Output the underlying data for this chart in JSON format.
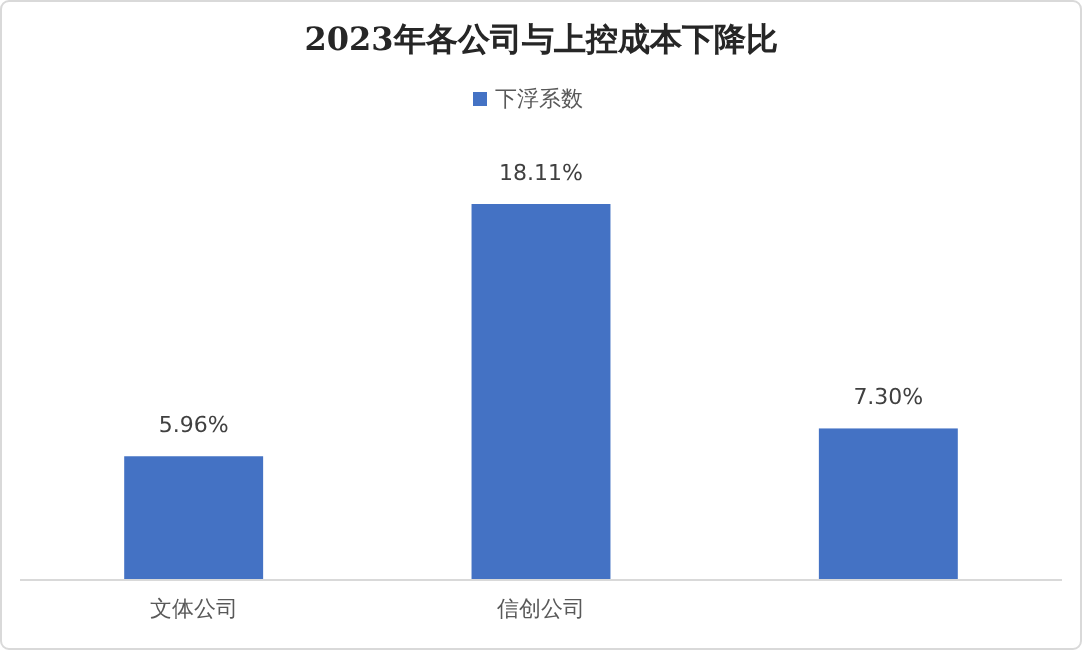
{
  "chart_data": {
    "type": "bar",
    "title": "2023年各公司与上控成本下降比",
    "categories": [
      "文体公司",
      "信创公司",
      null
    ],
    "series": [
      {
        "name": "下浮系数",
        "color": "#4472c4",
        "values": [
          5.96,
          18.11,
          7.3
        ],
        "value_labels": [
          "5.96%",
          "18.11%",
          "7.30%"
        ]
      }
    ],
    "legend": "top",
    "grid": false
  }
}
